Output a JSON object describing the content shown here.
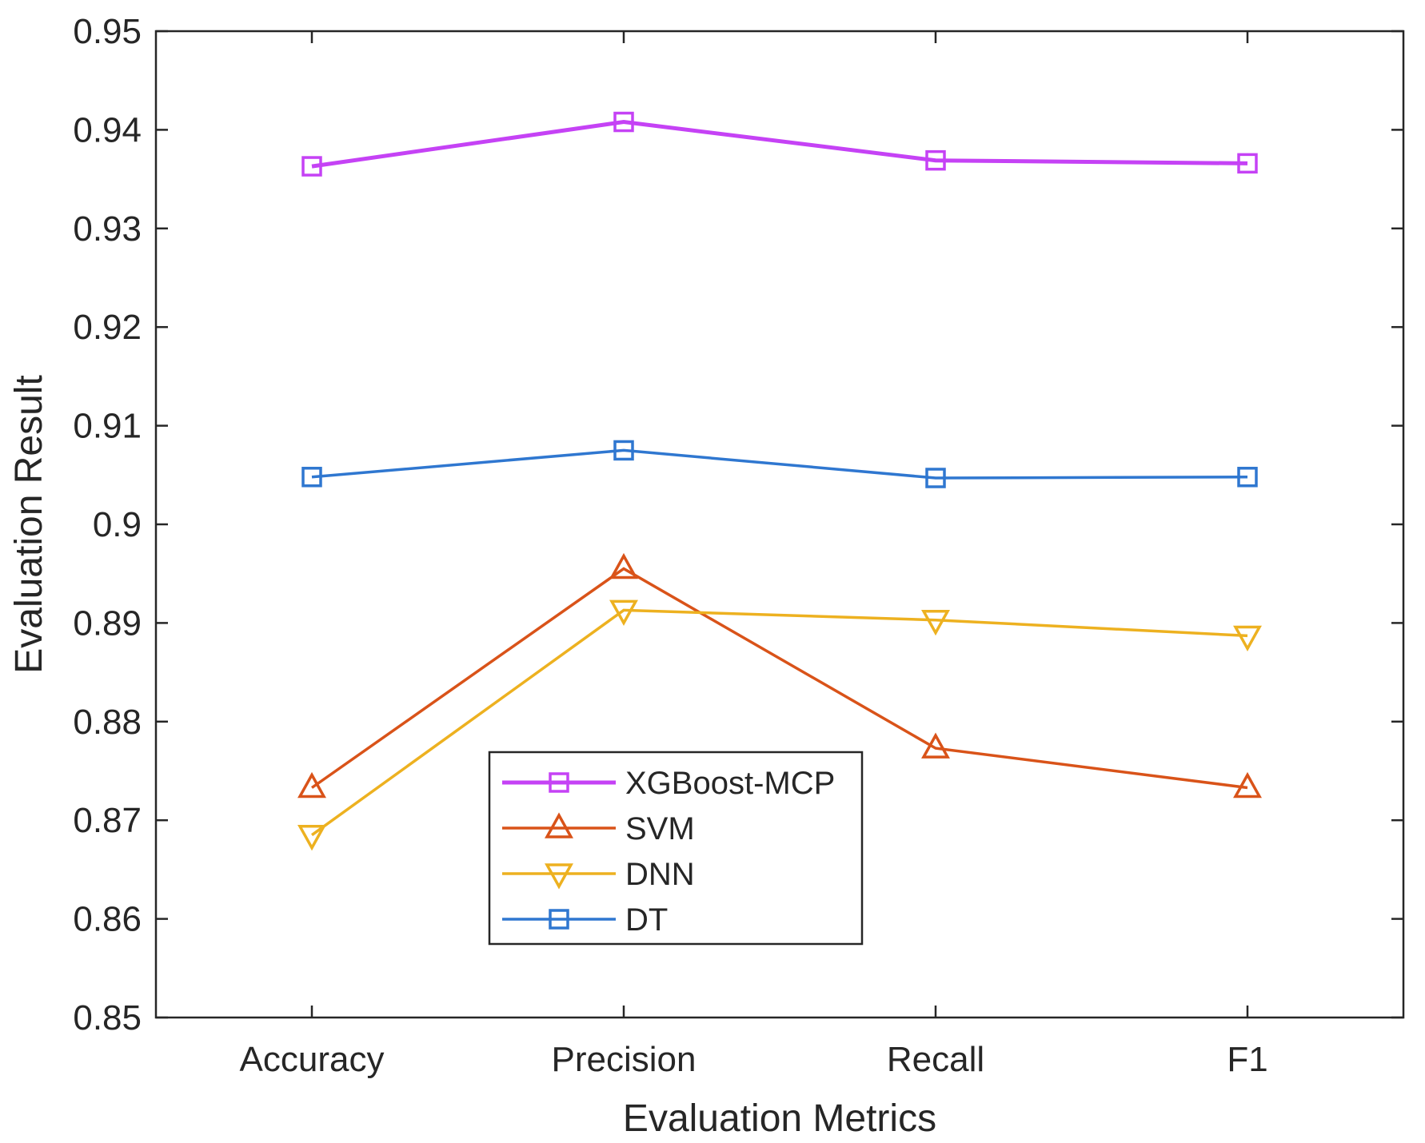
{
  "chart_data": {
    "type": "line",
    "title": "",
    "xlabel": "Evaluation Metrics",
    "ylabel": "Evaluation Result",
    "categories": [
      "Accuracy",
      "Precision",
      "Recall",
      "F1"
    ],
    "ylim": [
      0.85,
      0.95
    ],
    "yticks": [
      0.85,
      0.86,
      0.87,
      0.88,
      0.89,
      0.9,
      0.91,
      0.92,
      0.93,
      0.94,
      0.95
    ],
    "ytick_labels": [
      "0.85",
      "0.86",
      "0.87",
      "0.88",
      "0.89",
      "0.9",
      "0.91",
      "0.92",
      "0.93",
      "0.94",
      "0.95"
    ],
    "grid": false,
    "legend_position": "bottom-center",
    "series": [
      {
        "name": "XGBoost-MCP",
        "marker": "square",
        "color": "#C542F5",
        "values": [
          0.9363,
          0.9408,
          0.9369,
          0.9366
        ]
      },
      {
        "name": "SVM",
        "marker": "triangle-up",
        "color": "#D95319",
        "values": [
          0.8733,
          0.8955,
          0.8773,
          0.8733
        ]
      },
      {
        "name": "DNN",
        "marker": "triangle-down",
        "color": "#EDB120",
        "values": [
          0.8685,
          0.8913,
          0.8903,
          0.8887
        ]
      },
      {
        "name": "DT",
        "marker": "square",
        "color": "#2F77D0",
        "values": [
          0.9048,
          0.9075,
          0.9047,
          0.9048
        ]
      }
    ]
  }
}
